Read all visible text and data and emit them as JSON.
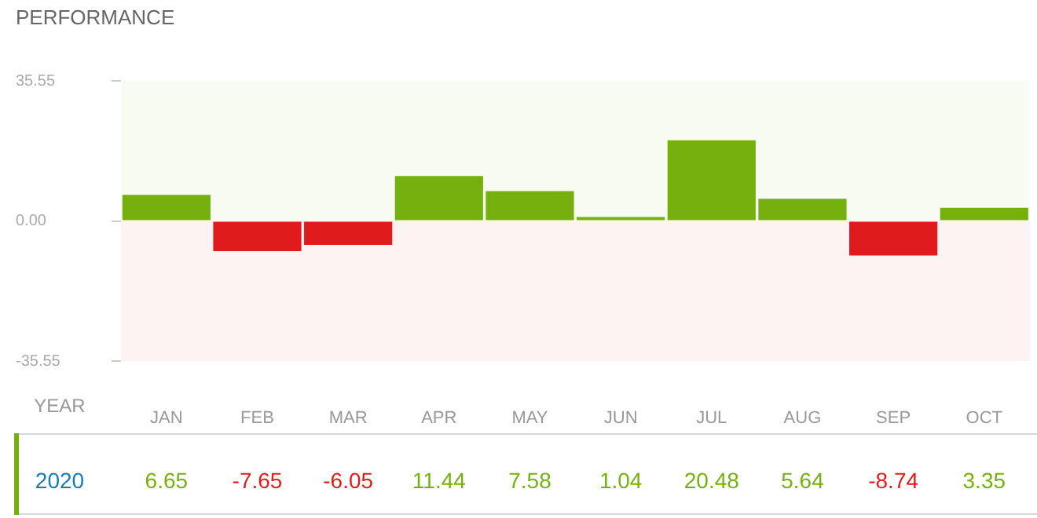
{
  "chart_data": {
    "type": "bar",
    "title": "PERFORMANCE",
    "categories": [
      "JAN",
      "FEB",
      "MAR",
      "APR",
      "MAY",
      "JUN",
      "JUL",
      "AUG",
      "SEP",
      "OCT"
    ],
    "series": [
      {
        "name": "2020",
        "values": [
          6.65,
          -7.65,
          -6.05,
          11.44,
          7.58,
          1.04,
          20.48,
          5.64,
          -8.74,
          3.35
        ],
        "colors": [
          "#76b00f",
          "#e01b1e",
          "#e01b1e",
          "#76b00f",
          "#76b00f",
          "#76b00f",
          "#76b00f",
          "#76b00f",
          "#e01b1e",
          "#76b00f"
        ]
      }
    ],
    "ylim": [
      -35.55,
      35.55
    ],
    "yticks": [
      35.55,
      {
        "value": 0,
        "label": "0.00"
      },
      -35.55
    ],
    "bands": [
      {
        "axis": "y",
        "from": 0,
        "to": 35.55,
        "color": "#f7fbf2"
      },
      {
        "axis": "y",
        "from": -35.55,
        "to": 0,
        "color": "#fdf3f2"
      }
    ],
    "data_labels": true,
    "annotations": [
      "YEAR"
    ]
  }
}
